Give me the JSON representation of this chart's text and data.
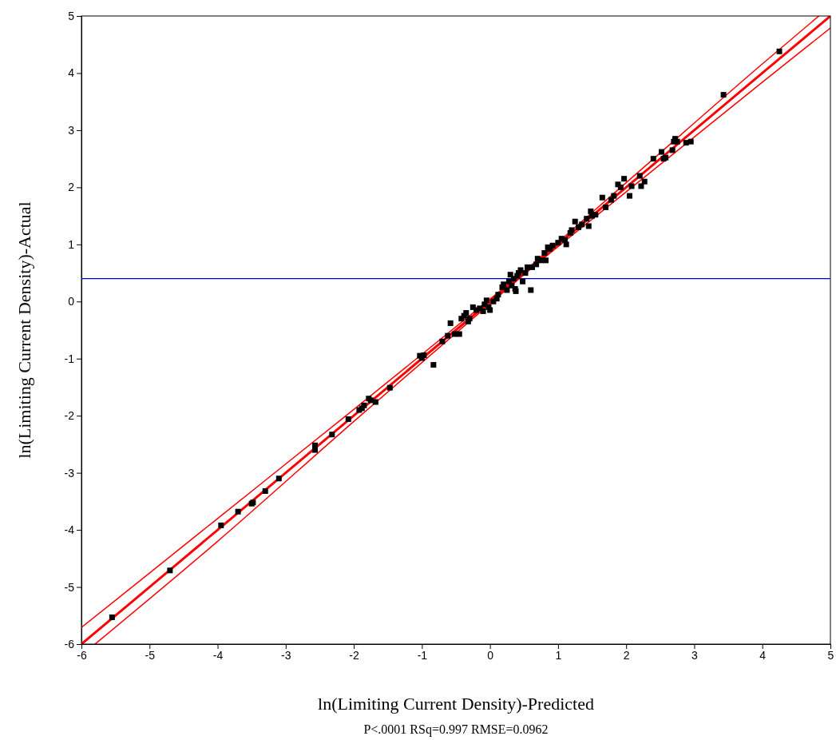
{
  "chart_data": {
    "type": "scatter",
    "xlabel": "ln(Limiting Current Density)-Predicted",
    "ylabel": "ln(Limiting Current Density)-Actual",
    "annotations": [
      "P<.0001 RSq=0.997 RMSE=0.0962"
    ],
    "xlim": [
      -6,
      5
    ],
    "ylim": [
      -6,
      5
    ],
    "xticks": [
      -6,
      -5,
      -4,
      -3,
      -2,
      -1,
      0,
      1,
      2,
      3,
      4,
      5
    ],
    "yticks": [
      -6,
      -5,
      -4,
      -3,
      -2,
      -1,
      0,
      1,
      2,
      3,
      4,
      5
    ],
    "grid": false,
    "marker": "square",
    "ref_lines": [
      {
        "axis": "y",
        "value": 0.4,
        "color": "#0000cc"
      }
    ],
    "series": [
      {
        "color": "#000000",
        "x": [
          -5.55,
          -4.7,
          -3.95,
          -3.7,
          -3.48,
          -3.5,
          -3.3,
          -3.1,
          -2.57,
          -2.57,
          -2.32,
          -2.08,
          -1.92,
          -1.88,
          -1.85,
          -1.78,
          -1.75,
          -1.68,
          -1.47,
          -1.03,
          -1.0,
          -0.97,
          -0.83,
          -0.7,
          -0.62,
          -0.58,
          -0.52,
          -0.45,
          -0.42,
          -0.38,
          -0.35,
          -0.32,
          -0.3,
          -0.25,
          -0.2,
          -0.15,
          -0.1,
          -0.08,
          -0.05,
          -0.02,
          0.0,
          0.05,
          0.1,
          0.12,
          0.18,
          0.2,
          0.25,
          0.28,
          0.3,
          0.32,
          0.35,
          0.37,
          0.38,
          0.4,
          0.42,
          0.45,
          0.48,
          0.52,
          0.55,
          0.6,
          0.62,
          0.68,
          0.7,
          0.75,
          0.8,
          0.82,
          0.85,
          0.88,
          0.92,
          1.0,
          1.05,
          1.1,
          1.12,
          1.18,
          1.2,
          1.25,
          1.3,
          1.35,
          1.42,
          1.45,
          1.48,
          1.5,
          1.55,
          1.65,
          1.7,
          1.78,
          1.82,
          1.88,
          1.92,
          1.97,
          2.05,
          2.08,
          2.2,
          2.22,
          2.27,
          2.4,
          2.52,
          2.55,
          2.58,
          2.68,
          2.7,
          2.72,
          2.75,
          2.88,
          2.95,
          3.43,
          4.25
        ],
        "values": [
          -5.53,
          -4.71,
          -3.92,
          -3.68,
          -3.52,
          -3.54,
          -3.32,
          -3.1,
          -2.52,
          -2.6,
          -2.33,
          -2.06,
          -1.9,
          -1.87,
          -1.82,
          -1.7,
          -1.73,
          -1.76,
          -1.51,
          -0.95,
          -0.99,
          -0.94,
          -1.11,
          -0.7,
          -0.6,
          -0.38,
          -0.57,
          -0.57,
          -0.3,
          -0.25,
          -0.2,
          -0.35,
          -0.3,
          -0.1,
          -0.15,
          -0.12,
          -0.17,
          -0.05,
          0.02,
          -0.1,
          -0.15,
          0.0,
          0.05,
          0.12,
          0.25,
          0.3,
          0.2,
          0.35,
          0.47,
          0.28,
          0.4,
          0.22,
          0.18,
          0.45,
          0.5,
          0.55,
          0.35,
          0.5,
          0.6,
          0.2,
          0.6,
          0.65,
          0.75,
          0.72,
          0.85,
          0.72,
          0.95,
          0.92,
          0.98,
          1.03,
          1.1,
          1.08,
          1.0,
          1.2,
          1.25,
          1.4,
          1.3,
          1.35,
          1.45,
          1.32,
          1.58,
          1.5,
          1.52,
          1.82,
          1.65,
          1.78,
          1.85,
          2.05,
          2.0,
          2.15,
          1.85,
          2.02,
          2.2,
          2.02,
          2.1,
          2.5,
          2.62,
          2.5,
          2.52,
          2.65,
          2.8,
          2.85,
          2.8,
          2.78,
          2.8,
          3.62,
          4.38
        ]
      },
      {
        "type": "line",
        "color": "#ff0000",
        "marker": "none",
        "x": [
          -6,
          -4,
          -2,
          0,
          0.5,
          2,
          4,
          5
        ],
        "values": [
          -6,
          -4,
          -2,
          0,
          0.5,
          2,
          4,
          5
        ]
      },
      {
        "type": "line",
        "color": "#ff0000",
        "marker": "none",
        "x": [
          -5.8,
          -4,
          -2,
          0,
          0.5,
          2,
          4,
          5
        ],
        "values": [
          -6,
          -4.2,
          -2.1,
          -0.04,
          0.47,
          1.92,
          3.84,
          4.79
        ]
      },
      {
        "type": "line",
        "color": "#ff0000",
        "marker": "none",
        "x": [
          -6,
          -4,
          -2,
          0,
          0.5,
          2,
          4,
          4.83
        ],
        "values": [
          -5.71,
          -3.8,
          -1.89,
          0.04,
          0.53,
          2.08,
          4.16,
          5
        ]
      }
    ]
  }
}
